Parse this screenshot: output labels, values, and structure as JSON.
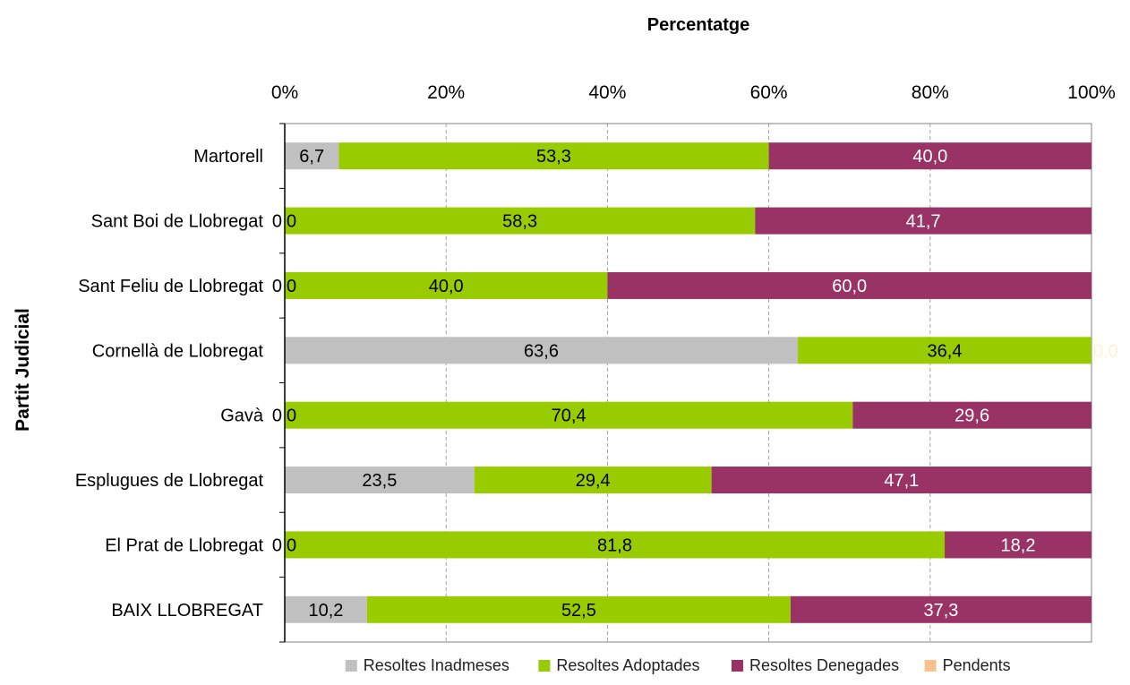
{
  "chart_data": {
    "type": "bar",
    "orientation": "horizontal",
    "stacked": "percent",
    "title": "Percentatge",
    "xlabel": "",
    "ylabel": "Partit Judicial",
    "xlim": [
      0,
      100
    ],
    "x_ticks": [
      "0%",
      "20%",
      "40%",
      "60%",
      "80%",
      "100%"
    ],
    "grid": "vertical dashed",
    "legend_position": "bottom",
    "categories": [
      "Martorell",
      "Sant Boi de Llobregat",
      "Sant Feliu de Llobregat",
      "Cornellà de Llobregat",
      "Gavà",
      "Esplugues de Llobregat",
      "El Prat de Llobregat",
      "BAIX LLOBREGAT"
    ],
    "series": [
      {
        "name": "Resoltes Inadmeses",
        "color": "#c0c0c0",
        "label_color": "#000000",
        "values": [
          6.7,
          0,
          0,
          63.6,
          0,
          23.5,
          0,
          10.2
        ],
        "labels": [
          "6,7",
          "0",
          "0",
          "63,6",
          "0",
          "23,5",
          "0",
          "10,2"
        ]
      },
      {
        "name": "Resoltes Adoptades",
        "color": "#99cc00",
        "label_color": "#000000",
        "values": [
          53.3,
          58.3,
          40.0,
          36.4,
          70.4,
          29.4,
          81.8,
          52.5
        ],
        "labels": [
          "53,3",
          "58,3",
          "40,0",
          "36,4",
          "70,4",
          "29,4",
          "81,8",
          "52,5"
        ]
      },
      {
        "name": "Resoltes Denegades",
        "color": "#993366",
        "label_color": "#ffffff",
        "values": [
          40.0,
          41.7,
          60.0,
          0,
          29.6,
          47.1,
          18.2,
          37.3
        ],
        "labels": [
          "40,0",
          "41,7",
          "60,0",
          "0,0",
          "29,6",
          "47,1",
          "18,2",
          "37,3"
        ]
      },
      {
        "name": "Pendents",
        "color": "#fac090",
        "label_color": "#000000",
        "values": [
          0,
          0,
          0,
          0,
          0,
          0,
          0,
          0
        ],
        "labels": [
          "",
          "",
          "",
          "",
          "",
          "",
          "",
          ""
        ]
      }
    ],
    "outside_labels": [
      "",
      "0",
      "0",
      "",
      "0",
      "",
      "0",
      ""
    ]
  }
}
